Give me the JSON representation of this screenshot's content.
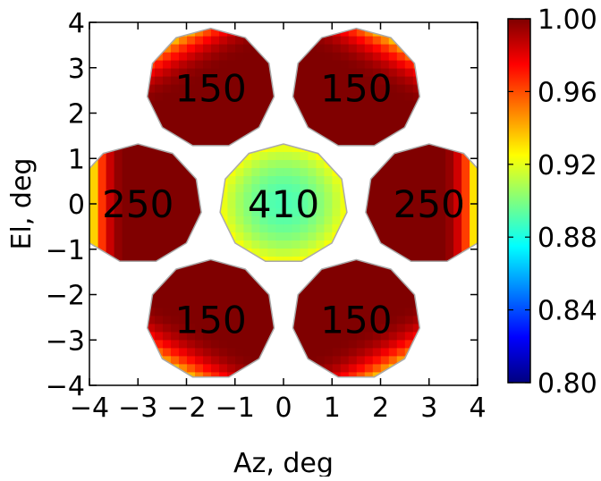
{
  "chart_data": {
    "type": "heatmap",
    "title": "",
    "xlabel": "Az, deg",
    "ylabel": "El, deg",
    "xlim": [
      -4,
      4
    ],
    "ylim": [
      -4,
      4
    ],
    "xticks": [
      -4,
      -3,
      -2,
      -1,
      0,
      1,
      2,
      3,
      4
    ],
    "yticks": [
      -4,
      -3,
      -2,
      -1,
      0,
      1,
      2,
      3,
      4
    ],
    "xtick_labels": [
      "−4",
      "−3",
      "−2",
      "−1",
      "0",
      "1",
      "2",
      "3",
      "4"
    ],
    "ytick_labels": [
      "−4",
      "−3",
      "−2",
      "−1",
      "0",
      "1",
      "2",
      "3",
      "4"
    ],
    "grid": false,
    "colormap": "jet",
    "colorbar": {
      "range": [
        0.8,
        1.0
      ],
      "ticks": [
        0.8,
        0.84,
        0.88,
        0.92,
        0.96,
        1.0
      ],
      "tick_labels": [
        "0.80",
        "0.84",
        "0.88",
        "0.92",
        "0.96",
        "1.00"
      ],
      "stops": [
        "#00007f",
        "#0000ff",
        "#007fff",
        "#00ffff",
        "#7fff7f",
        "#ffff00",
        "#ff7f00",
        "#ff0000",
        "#7f0000"
      ]
    },
    "regions": [
      {
        "label": "150",
        "center": [
          -1.5,
          2.55
        ],
        "radius": 1.32,
        "min_value": 0.935,
        "max_value": 1.0,
        "profile": "outward"
      },
      {
        "label": "150",
        "center": [
          1.5,
          2.55
        ],
        "radius": 1.32,
        "min_value": 0.935,
        "max_value": 1.0,
        "profile": "outward"
      },
      {
        "label": "250",
        "center": [
          -3.0,
          0.0
        ],
        "radius": 1.32,
        "min_value": 0.8,
        "max_value": 1.0,
        "profile": "outward"
      },
      {
        "label": "410",
        "center": [
          0.0,
          0.0
        ],
        "radius": 1.32,
        "min_value": 0.89,
        "max_value": 0.925,
        "profile": "radial"
      },
      {
        "label": "250",
        "center": [
          3.0,
          0.0
        ],
        "radius": 1.32,
        "min_value": 0.8,
        "max_value": 1.0,
        "profile": "outward"
      },
      {
        "label": "150",
        "center": [
          -1.5,
          -2.55
        ],
        "radius": 1.32,
        "min_value": 0.935,
        "max_value": 1.0,
        "profile": "outward"
      },
      {
        "label": "150",
        "center": [
          1.5,
          -2.55
        ],
        "radius": 1.32,
        "min_value": 0.935,
        "max_value": 1.0,
        "profile": "outward"
      }
    ]
  }
}
